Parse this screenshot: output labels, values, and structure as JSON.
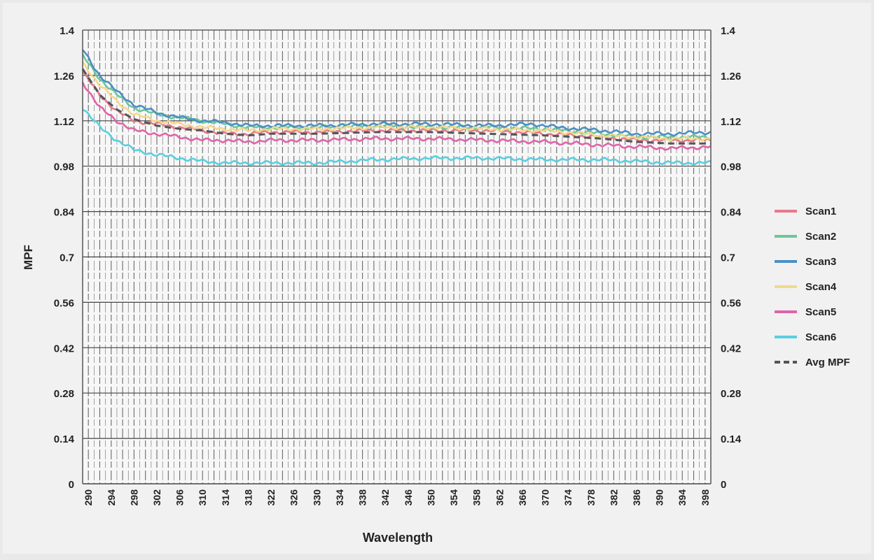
{
  "chart_data": {
    "type": "line",
    "title": "",
    "xlabel": "Wavelength",
    "ylabel": "MPF",
    "xlim": [
      289,
      399
    ],
    "ylim": [
      0,
      1.4
    ],
    "x_ticks": [
      290,
      294,
      298,
      302,
      306,
      310,
      314,
      318,
      322,
      326,
      330,
      334,
      338,
      342,
      346,
      350,
      354,
      358,
      362,
      366,
      370,
      374,
      378,
      382,
      386,
      390,
      394,
      398
    ],
    "y_ticks": [
      "0",
      "0.14",
      "0.28",
      "0.42",
      "0.56",
      "0.7",
      "0.84",
      "0.98",
      "1.12",
      "1.26",
      "1.4"
    ],
    "y_ticks_right": [
      "0",
      "0.14",
      "0.28",
      "0.42",
      "0.56",
      "0.7",
      "0.84",
      "0.98",
      "1.12",
      "1.26",
      "1.4"
    ],
    "grid": true,
    "legend_position": "right",
    "series": [
      {
        "name": "Scan1",
        "color": "#e8788c",
        "dashed": false,
        "points": [
          [
            289,
            1.27
          ],
          [
            292,
            1.2
          ],
          [
            295,
            1.15
          ],
          [
            298,
            1.12
          ],
          [
            302,
            1.11
          ],
          [
            306,
            1.1
          ],
          [
            310,
            1.09
          ],
          [
            314,
            1.08
          ],
          [
            318,
            1.08
          ],
          [
            322,
            1.085
          ],
          [
            330,
            1.085
          ],
          [
            340,
            1.09
          ],
          [
            350,
            1.09
          ],
          [
            360,
            1.09
          ],
          [
            370,
            1.08
          ],
          [
            380,
            1.07
          ],
          [
            386,
            1.06
          ],
          [
            392,
            1.06
          ],
          [
            399,
            1.06
          ]
        ]
      },
      {
        "name": "Scan2",
        "color": "#6cc79a",
        "dashed": false,
        "points": [
          [
            289,
            1.32
          ],
          [
            292,
            1.25
          ],
          [
            295,
            1.2
          ],
          [
            298,
            1.16
          ],
          [
            302,
            1.14
          ],
          [
            306,
            1.13
          ],
          [
            310,
            1.12
          ],
          [
            314,
            1.11
          ],
          [
            318,
            1.1
          ],
          [
            322,
            1.1
          ],
          [
            330,
            1.1
          ],
          [
            340,
            1.105
          ],
          [
            350,
            1.1
          ],
          [
            360,
            1.1
          ],
          [
            370,
            1.095
          ],
          [
            380,
            1.08
          ],
          [
            386,
            1.07
          ],
          [
            392,
            1.07
          ],
          [
            399,
            1.07
          ]
        ]
      },
      {
        "name": "Scan3",
        "color": "#4b8fc4",
        "dashed": false,
        "points": [
          [
            289,
            1.34
          ],
          [
            292,
            1.26
          ],
          [
            295,
            1.21
          ],
          [
            298,
            1.17
          ],
          [
            302,
            1.145
          ],
          [
            306,
            1.13
          ],
          [
            310,
            1.12
          ],
          [
            314,
            1.115
          ],
          [
            318,
            1.105
          ],
          [
            322,
            1.105
          ],
          [
            330,
            1.105
          ],
          [
            340,
            1.11
          ],
          [
            350,
            1.11
          ],
          [
            360,
            1.105
          ],
          [
            368,
            1.11
          ],
          [
            372,
            1.1
          ],
          [
            380,
            1.09
          ],
          [
            386,
            1.08
          ],
          [
            392,
            1.08
          ],
          [
            399,
            1.085
          ]
        ]
      },
      {
        "name": "Scan4",
        "color": "#f3d98a",
        "dashed": false,
        "points": [
          [
            289,
            1.3
          ],
          [
            292,
            1.23
          ],
          [
            295,
            1.18
          ],
          [
            298,
            1.14
          ],
          [
            302,
            1.12
          ],
          [
            306,
            1.11
          ],
          [
            310,
            1.1
          ],
          [
            314,
            1.095
          ],
          [
            318,
            1.09
          ],
          [
            322,
            1.095
          ],
          [
            330,
            1.095
          ],
          [
            340,
            1.1
          ],
          [
            350,
            1.1
          ],
          [
            360,
            1.095
          ],
          [
            370,
            1.09
          ],
          [
            380,
            1.075
          ],
          [
            386,
            1.07
          ],
          [
            392,
            1.065
          ],
          [
            399,
            1.065
          ]
        ]
      },
      {
        "name": "Scan5",
        "color": "#e064a8",
        "dashed": false,
        "points": [
          [
            289,
            1.24
          ],
          [
            292,
            1.16
          ],
          [
            295,
            1.12
          ],
          [
            298,
            1.09
          ],
          [
            302,
            1.08
          ],
          [
            306,
            1.07
          ],
          [
            310,
            1.06
          ],
          [
            314,
            1.06
          ],
          [
            318,
            1.055
          ],
          [
            322,
            1.06
          ],
          [
            330,
            1.06
          ],
          [
            340,
            1.065
          ],
          [
            350,
            1.065
          ],
          [
            360,
            1.06
          ],
          [
            370,
            1.055
          ],
          [
            380,
            1.045
          ],
          [
            386,
            1.04
          ],
          [
            392,
            1.035
          ],
          [
            399,
            1.04
          ]
        ]
      },
      {
        "name": "Scan6",
        "color": "#58cfe0",
        "dashed": false,
        "points": [
          [
            289,
            1.16
          ],
          [
            292,
            1.1
          ],
          [
            295,
            1.06
          ],
          [
            298,
            1.03
          ],
          [
            302,
            1.015
          ],
          [
            306,
            1.005
          ],
          [
            310,
            0.995
          ],
          [
            314,
            0.99
          ],
          [
            318,
            0.99
          ],
          [
            322,
            0.99
          ],
          [
            330,
            0.99
          ],
          [
            340,
            1.0
          ],
          [
            350,
            1.005
          ],
          [
            360,
            1.005
          ],
          [
            370,
            1.0
          ],
          [
            380,
            1.0
          ],
          [
            386,
            0.995
          ],
          [
            392,
            0.99
          ],
          [
            399,
            0.99
          ]
        ]
      },
      {
        "name": "Avg MPF",
        "color": "#555555",
        "dashed": true,
        "points": [
          [
            289,
            1.28
          ],
          [
            292,
            1.2
          ],
          [
            295,
            1.155
          ],
          [
            298,
            1.125
          ],
          [
            302,
            1.105
          ],
          [
            306,
            1.095
          ],
          [
            310,
            1.09
          ],
          [
            314,
            1.08
          ],
          [
            318,
            1.075
          ],
          [
            322,
            1.08
          ],
          [
            330,
            1.08
          ],
          [
            340,
            1.085
          ],
          [
            350,
            1.085
          ],
          [
            360,
            1.08
          ],
          [
            370,
            1.075
          ],
          [
            380,
            1.065
          ],
          [
            386,
            1.055
          ],
          [
            392,
            1.05
          ],
          [
            399,
            1.05
          ]
        ]
      }
    ]
  }
}
